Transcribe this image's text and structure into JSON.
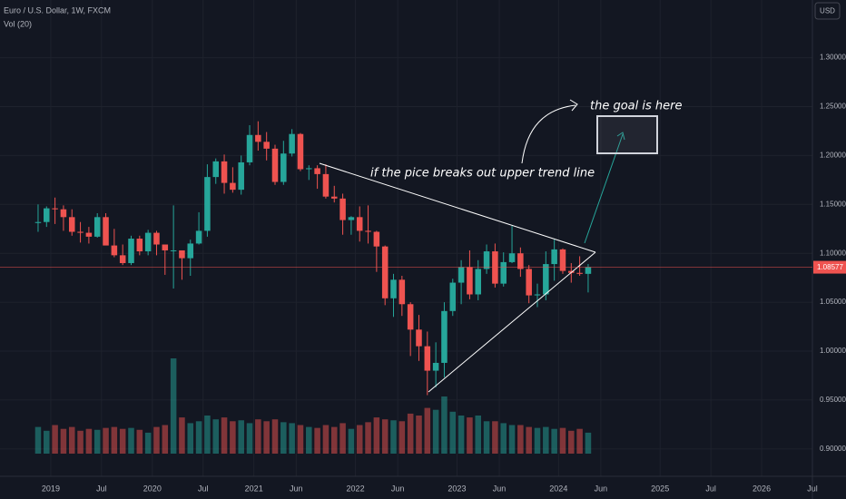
{
  "chart_data": {
    "type": "candlestick",
    "title": "Euro / U.S. Dollar, 1W, FXCM",
    "volume_label": "Vol (20)",
    "currency": "USD",
    "annotations": [
      "if the pice breaks out upper trend line",
      "the goal is here"
    ],
    "up_color": "#26a69a",
    "down_color": "#ef5350",
    "last_price": 1.08577,
    "x": [
      "2018-11",
      "2018-12",
      "2019-01",
      "2019-02",
      "2019-03",
      "2019-04",
      "2019-05",
      "2019-06",
      "2019-07",
      "2019-08",
      "2019-09",
      "2019-10",
      "2019-11",
      "2019-12",
      "2020-01",
      "2020-02",
      "2020-03",
      "2020-04",
      "2020-05",
      "2020-06",
      "2020-07",
      "2020-08",
      "2020-09",
      "2020-10",
      "2020-11",
      "2020-12",
      "2021-01",
      "2021-02",
      "2021-03",
      "2021-04",
      "2021-05",
      "2021-06",
      "2021-07",
      "2021-08",
      "2021-09",
      "2021-10",
      "2021-11",
      "2021-12",
      "2022-01",
      "2022-02",
      "2022-03",
      "2022-04",
      "2022-05",
      "2022-06",
      "2022-07",
      "2022-08",
      "2022-09",
      "2022-10",
      "2022-11",
      "2022-12",
      "2023-01",
      "2023-02",
      "2023-03",
      "2023-04",
      "2023-05",
      "2023-06",
      "2023-07",
      "2023-08",
      "2023-09",
      "2023-10",
      "2023-11",
      "2023-12",
      "2024-01",
      "2024-02",
      "2024-03",
      "2024-04"
    ],
    "open": [
      1.131,
      1.132,
      1.146,
      1.145,
      1.137,
      1.122,
      1.121,
      1.117,
      1.137,
      1.108,
      1.098,
      1.09,
      1.115,
      1.102,
      1.121,
      1.109,
      1.103,
      1.103,
      1.095,
      1.11,
      1.123,
      1.178,
      1.194,
      1.172,
      1.165,
      1.193,
      1.221,
      1.214,
      1.207,
      1.173,
      1.202,
      1.222,
      1.186,
      1.187,
      1.181,
      1.158,
      1.156,
      1.134,
      1.137,
      1.123,
      1.122,
      1.107,
      1.054,
      1.073,
      1.048,
      1.022,
      1.005,
      0.98,
      0.988,
      1.041,
      1.07,
      1.086,
      1.058,
      1.084,
      1.102,
      1.069,
      1.091,
      1.1,
      1.084,
      1.057,
      1.058,
      1.089,
      1.104,
      1.082,
      1.08,
      1.079
    ],
    "high": [
      1.15,
      1.148,
      1.157,
      1.149,
      1.145,
      1.132,
      1.127,
      1.141,
      1.141,
      1.125,
      1.109,
      1.118,
      1.118,
      1.124,
      1.123,
      1.109,
      1.149,
      1.102,
      1.114,
      1.142,
      1.191,
      1.197,
      1.201,
      1.188,
      1.2,
      1.231,
      1.235,
      1.224,
      1.211,
      1.215,
      1.227,
      1.223,
      1.19,
      1.19,
      1.191,
      1.169,
      1.161,
      1.138,
      1.148,
      1.149,
      1.123,
      1.108,
      1.079,
      1.077,
      1.05,
      1.037,
      1.02,
      1.009,
      1.05,
      1.074,
      1.093,
      1.103,
      1.093,
      1.109,
      1.11,
      1.101,
      1.128,
      1.106,
      1.088,
      1.069,
      1.102,
      1.114,
      1.105,
      1.09,
      1.097,
      1.089
    ],
    "low": [
      1.122,
      1.127,
      1.13,
      1.123,
      1.118,
      1.111,
      1.11,
      1.116,
      1.11,
      1.096,
      1.088,
      1.088,
      1.098,
      1.098,
      1.098,
      1.078,
      1.064,
      1.073,
      1.077,
      1.109,
      1.117,
      1.171,
      1.161,
      1.162,
      1.16,
      1.19,
      1.205,
      1.195,
      1.17,
      1.17,
      1.199,
      1.184,
      1.175,
      1.166,
      1.156,
      1.152,
      1.119,
      1.119,
      1.112,
      1.11,
      1.081,
      1.047,
      1.035,
      1.036,
      0.995,
      0.99,
      0.955,
      0.963,
      0.973,
      1.036,
      1.048,
      1.053,
      1.052,
      1.079,
      1.065,
      1.066,
      1.09,
      1.076,
      1.049,
      1.045,
      1.052,
      1.072,
      1.079,
      1.07,
      1.077,
      1.06
    ],
    "close": [
      1.132,
      1.146,
      1.145,
      1.137,
      1.122,
      1.121,
      1.117,
      1.137,
      1.108,
      1.098,
      1.09,
      1.115,
      1.102,
      1.121,
      1.109,
      1.103,
      1.103,
      1.095,
      1.11,
      1.123,
      1.178,
      1.194,
      1.172,
      1.165,
      1.193,
      1.221,
      1.214,
      1.207,
      1.173,
      1.202,
      1.222,
      1.186,
      1.187,
      1.181,
      1.158,
      1.156,
      1.134,
      1.137,
      1.123,
      1.122,
      1.107,
      1.054,
      1.073,
      1.048,
      1.022,
      1.005,
      0.98,
      0.988,
      1.041,
      1.07,
      1.086,
      1.058,
      1.084,
      1.102,
      1.069,
      1.091,
      1.1,
      1.084,
      1.057,
      1.058,
      1.089,
      1.104,
      1.082,
      1.08,
      1.079,
      1.086
    ],
    "volume": [
      28,
      24,
      30,
      26,
      28,
      24,
      26,
      25,
      27,
      28,
      26,
      27,
      25,
      22,
      28,
      30,
      100,
      38,
      32,
      34,
      40,
      36,
      38,
      34,
      35,
      32,
      36,
      34,
      36,
      33,
      32,
      30,
      28,
      27,
      30,
      28,
      32,
      26,
      30,
      33,
      38,
      36,
      35,
      34,
      42,
      40,
      48,
      46,
      60,
      44,
      40,
      38,
      40,
      34,
      34,
      32,
      30,
      30,
      28,
      27,
      28,
      26,
      27,
      24,
      26,
      22
    ],
    "xlim": [
      "2018-07",
      "2026-07"
    ],
    "ylim": [
      0.872,
      1.359
    ],
    "xticks": [
      {
        "value": "2019-01",
        "label": "2019"
      },
      {
        "value": "2019-07",
        "label": "Jul"
      },
      {
        "value": "2020-01",
        "label": "2020"
      },
      {
        "value": "2020-07",
        "label": "Jul"
      },
      {
        "value": "2021-01",
        "label": "2021"
      },
      {
        "value": "2021-06",
        "label": "Jun"
      },
      {
        "value": "2022-01",
        "label": "2022"
      },
      {
        "value": "2022-06",
        "label": "Jun"
      },
      {
        "value": "2023-01",
        "label": "2023"
      },
      {
        "value": "2023-06",
        "label": "Jun"
      },
      {
        "value": "2024-01",
        "label": "2024"
      },
      {
        "value": "2024-06",
        "label": "Jun"
      },
      {
        "value": "2025-01",
        "label": "2025"
      },
      {
        "value": "2025-07",
        "label": "Jul"
      },
      {
        "value": "2026-01",
        "label": "2026"
      },
      {
        "value": "2026-07",
        "label": "Jul"
      }
    ],
    "yticks": [
      {
        "value": 0.9,
        "label": "0.90000"
      },
      {
        "value": 0.95,
        "label": "0.95000"
      },
      {
        "value": 1.0,
        "label": "1.00000"
      },
      {
        "value": 1.05,
        "label": "1.05000"
      },
      {
        "value": 1.1,
        "label": "1.10000"
      },
      {
        "value": 1.15,
        "label": "1.15000"
      },
      {
        "value": 1.2,
        "label": "1.20000"
      },
      {
        "value": 1.25,
        "label": "1.25000"
      },
      {
        "value": 1.3,
        "label": "1.30000"
      }
    ],
    "grid": true
  }
}
